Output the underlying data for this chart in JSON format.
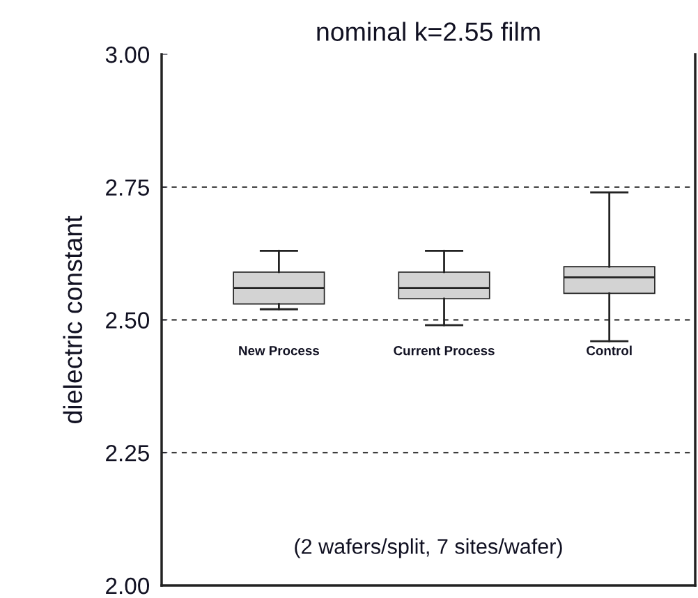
{
  "chart_data": {
    "type": "box",
    "title": "nominal k=2.55 film",
    "ylabel": "dielectric constant",
    "categories": [
      "New Process",
      "Current Process",
      "Control"
    ],
    "boxes": [
      {
        "low": 2.52,
        "q1": 2.53,
        "median": 2.56,
        "q3": 2.59,
        "high": 2.63
      },
      {
        "low": 2.49,
        "q1": 2.54,
        "median": 2.56,
        "q3": 2.59,
        "high": 2.63
      },
      {
        "low": 2.46,
        "q1": 2.55,
        "median": 2.58,
        "q3": 2.6,
        "high": 2.74
      }
    ],
    "color": "#d3d3d3",
    "ylim": [
      2.0,
      3.0
    ],
    "yticks": [
      {
        "value": 2.0,
        "label": "2.00"
      },
      {
        "value": 2.25,
        "label": "2.25"
      },
      {
        "value": 2.5,
        "label": "2.50"
      },
      {
        "value": 2.75,
        "label": "2.75"
      },
      {
        "value": 3.0,
        "label": "3.00"
      }
    ],
    "grid": "y",
    "annotations": [
      "(2 wafers/split, 7 sites/wafer)"
    ]
  }
}
